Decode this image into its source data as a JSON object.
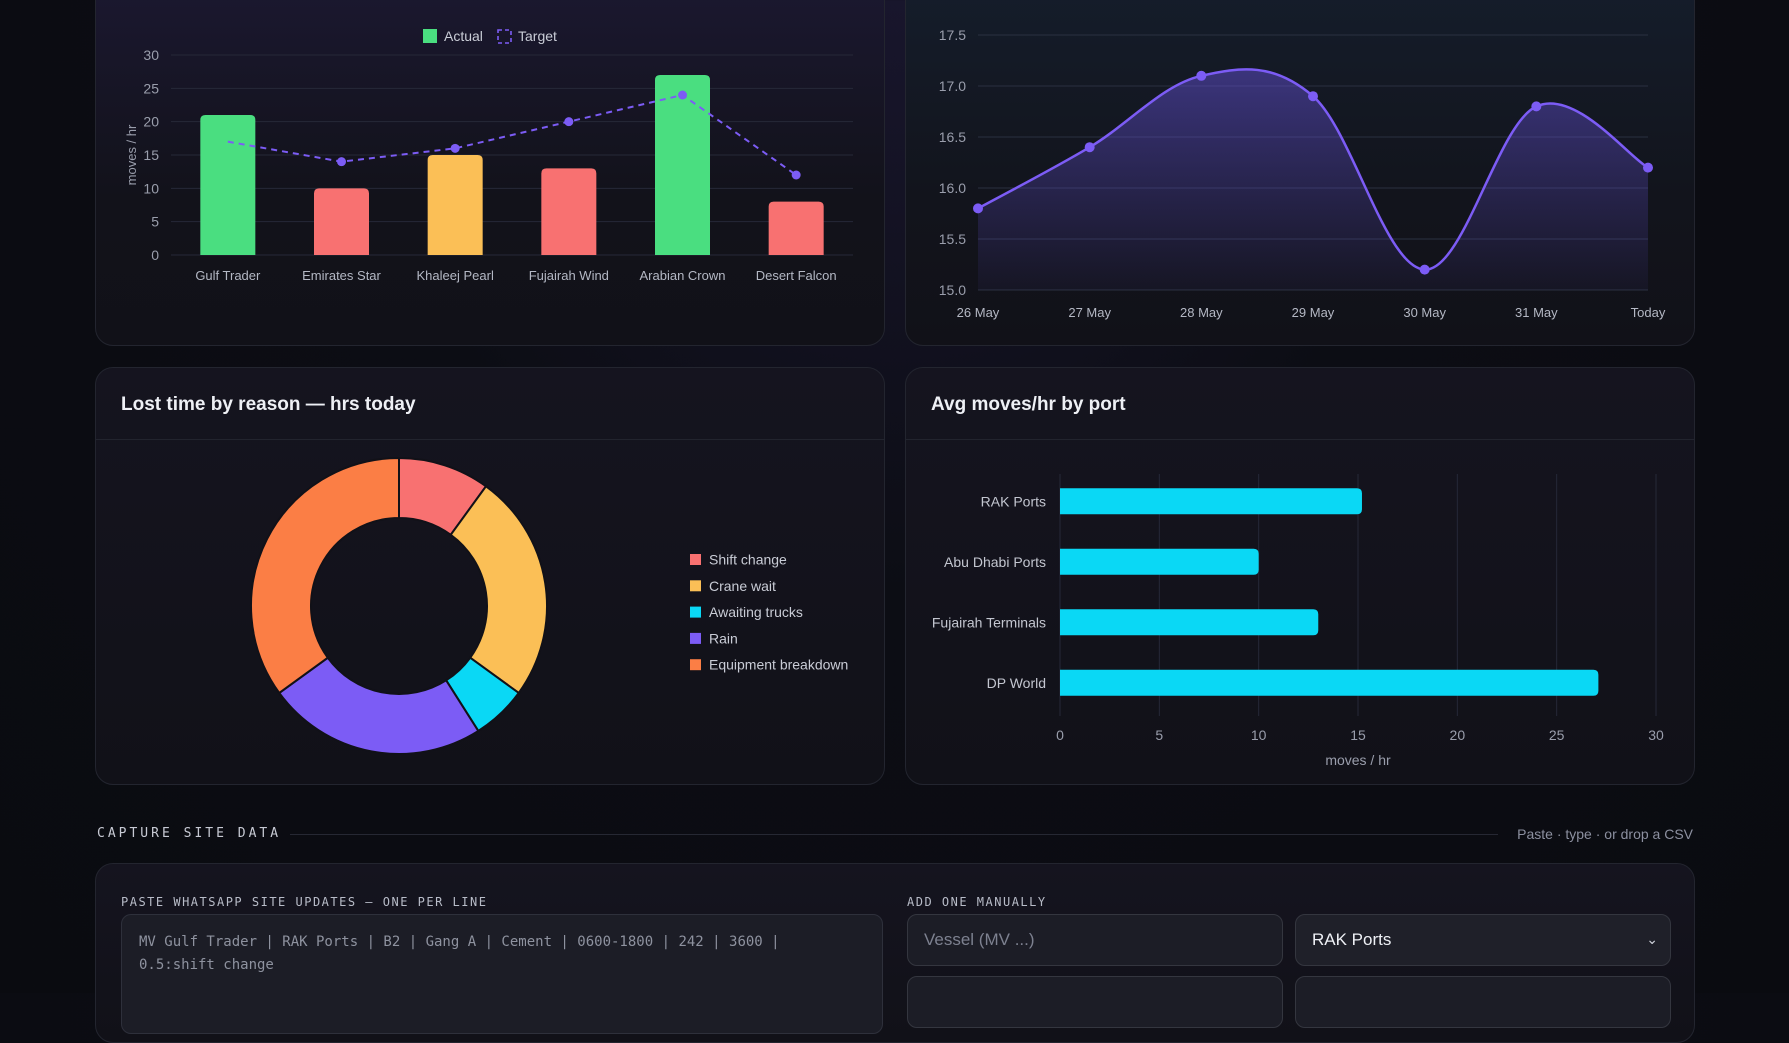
{
  "colors": {
    "green": "#4ade80",
    "red": "#f87171",
    "amber": "#fbbf56",
    "purple": "#7c5cf5",
    "cyan": "#0ad8f5",
    "orange": "#fb7e45"
  },
  "chart_data": [
    {
      "type": "bar",
      "ylabel": "moves / hr",
      "ylim": [
        0,
        30
      ],
      "yticks": [
        0,
        5,
        10,
        15,
        20,
        25,
        30
      ],
      "categories": [
        "Gulf Trader",
        "Emirates Star",
        "Khaleej Pearl",
        "Fujairah Wind",
        "Arabian Crown",
        "Desert Falcon"
      ],
      "series": [
        {
          "name": "Actual",
          "values": [
            21,
            10,
            15,
            13,
            27,
            8
          ],
          "colors": [
            "#4ade80",
            "#f87171",
            "#fbbf56",
            "#f87171",
            "#4ade80",
            "#f87171"
          ]
        },
        {
          "name": "Target",
          "type": "line",
          "style": "dashed",
          "values": [
            17,
            14,
            16,
            20,
            24,
            12
          ]
        }
      ],
      "legend": "top-center",
      "grid": true
    },
    {
      "type": "area",
      "x": [
        "26 May",
        "27 May",
        "28 May",
        "29 May",
        "30 May",
        "31 May",
        "Today"
      ],
      "values": [
        15.8,
        16.4,
        17.1,
        16.9,
        15.2,
        16.8,
        16.2
      ],
      "ylim": [
        15.0,
        17.5
      ],
      "yticks": [
        "15.0",
        "15.5",
        "16.0",
        "16.5",
        "17.0",
        "17.5"
      ],
      "grid": true
    },
    {
      "type": "pie",
      "title": "Lost time by reason — hrs today",
      "categories": [
        "Shift change",
        "Crane wait",
        "Awaiting trucks",
        "Rain",
        "Equipment breakdown"
      ],
      "values": [
        1.0,
        2.5,
        0.6,
        2.4,
        3.5
      ],
      "colors": [
        "#f87171",
        "#fbbf56",
        "#0ad8f5",
        "#7c5cf5",
        "#fb7e45"
      ],
      "legend": "right"
    },
    {
      "type": "bar",
      "orientation": "horizontal",
      "title": "Avg moves/hr by port",
      "categories": [
        "RAK Ports",
        "Abu Dhabi Ports",
        "Fujairah Terminals",
        "DP World"
      ],
      "values": [
        15.2,
        10,
        13,
        27.1
      ],
      "xlabel": "moves / hr",
      "xlim": [
        0,
        30
      ],
      "xticks": [
        0,
        5,
        10,
        15,
        20,
        25,
        30
      ],
      "grid": true
    }
  ],
  "capture": {
    "section_title": "CAPTURE SITE DATA",
    "hint": "Paste · type · or drop a CSV",
    "paste_label": "PASTE WHATSAPP SITE UPDATES — ONE PER LINE",
    "paste_placeholder": "MV Gulf Trader | RAK Ports | B2 | Gang A | Cement | 0600-1800 | 242 | 3600 |\n0.5:shift change",
    "manual_label": "ADD ONE MANUALLY",
    "vessel_placeholder": "Vessel (MV ...)",
    "port_selected": "RAK Ports"
  }
}
